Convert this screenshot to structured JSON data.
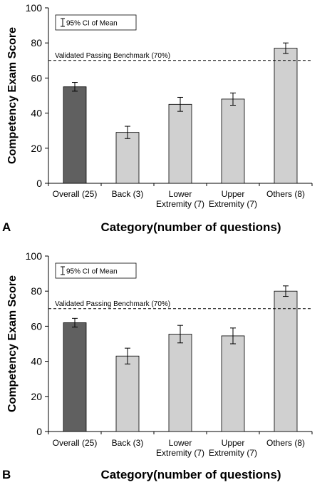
{
  "chart_data": [
    {
      "type": "bar",
      "panel_label": "A",
      "categories": [
        [
          "Overall (25)"
        ],
        [
          "Back (3)"
        ],
        [
          "Lower",
          "Extremity (7)"
        ],
        [
          "Upper",
          "Extremity (7)"
        ],
        [
          "Others (8)"
        ]
      ],
      "values": [
        55,
        29,
        45,
        48,
        77
      ],
      "error": [
        2.5,
        3.5,
        4,
        3.5,
        3
      ],
      "bar_colors": [
        "#606060",
        "#d0d0d0",
        "#d0d0d0",
        "#d0d0d0",
        "#d0d0d0"
      ],
      "ylabel": "Competency Exam Score",
      "xlabel": "Category(number of questions)",
      "ylim": [
        0,
        100
      ],
      "yticks": [
        0,
        20,
        40,
        60,
        80,
        100
      ],
      "benchmark": {
        "value": 70,
        "label": "Validated Passing Benchmark (70%)"
      },
      "legend": {
        "label": "95% CI of Mean",
        "position": "top-left"
      },
      "grid": false
    },
    {
      "type": "bar",
      "panel_label": "B",
      "categories": [
        [
          "Overall (25)"
        ],
        [
          "Back (3)"
        ],
        [
          "Lower",
          "Extremity (7)"
        ],
        [
          "Upper",
          "Extremity (7)"
        ],
        [
          "Others (8)"
        ]
      ],
      "values": [
        62,
        43,
        55.5,
        54.5,
        80
      ],
      "error": [
        2.5,
        4.5,
        5,
        4.5,
        3
      ],
      "bar_colors": [
        "#606060",
        "#d0d0d0",
        "#d0d0d0",
        "#d0d0d0",
        "#d0d0d0"
      ],
      "ylabel": "Competency Exam Score",
      "xlabel": "Category(number of questions)",
      "ylim": [
        0,
        100
      ],
      "yticks": [
        0,
        20,
        40,
        60,
        80,
        100
      ],
      "benchmark": {
        "value": 70,
        "label": "Validated Passing Benchmark (70%)"
      },
      "legend": {
        "label": "95% CI of Mean",
        "position": "top-left"
      },
      "grid": false
    }
  ]
}
